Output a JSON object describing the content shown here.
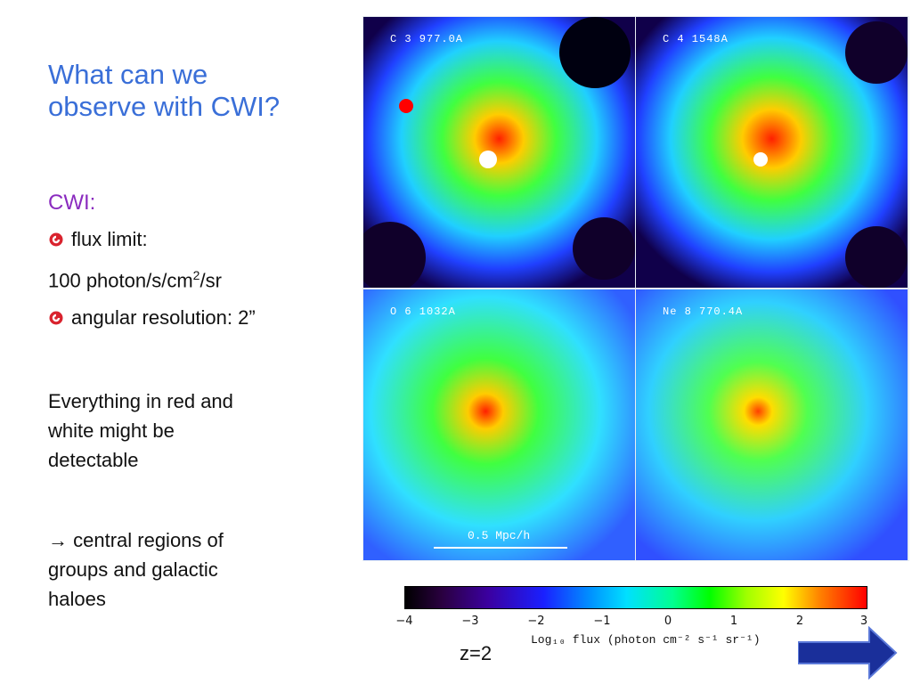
{
  "slide": {
    "title": "What can we\nobserve with CWI?",
    "cwi_heading": "CWI:",
    "bullets": [
      {
        "text_a": "flux limit:",
        "text_b": "100 photon/s/cm",
        "sup": "2",
        "text_c": "/sr"
      },
      {
        "text_a": "angular resolution: 2”"
      }
    ],
    "para1": "Everything in red and\nwhite might be\ndetectable",
    "para2_arrow": "→",
    "para2": " central regions of\ngroups and galactic\nhaloes",
    "z_label": "z=2"
  },
  "figure": {
    "panels": [
      {
        "label": "C 3 977.0A"
      },
      {
        "label": "C 4 1548A"
      },
      {
        "label": "O 6 1032A"
      },
      {
        "label": "Ne 8 770.4A"
      }
    ],
    "scale_label": "0.5 Mpc/h",
    "colorbar": {
      "ticks": [
        "−4",
        "−3",
        "−2",
        "−1",
        "0",
        "1",
        "2",
        "3"
      ],
      "label": "Log₁₀ flux (photon cm⁻² s⁻¹ sr⁻¹)"
    }
  },
  "colors": {
    "title": "#3a6fd8",
    "cwi": "#8a2bbf",
    "bullet": "#d9232e",
    "arrow": "#1a2f9a"
  }
}
